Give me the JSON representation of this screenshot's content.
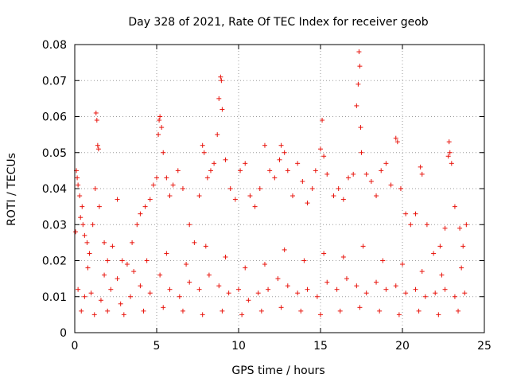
{
  "chart_data": {
    "type": "scatter",
    "title": "Day 328 of 2021, Rate Of TEC Index for receiver geob",
    "xlabel": "GPS time / hours",
    "ylabel": "ROTI / TECUs",
    "xlim": [
      0,
      25
    ],
    "ylim": [
      0,
      0.08
    ],
    "xticks": [
      "0",
      "5",
      "10",
      "15",
      "20",
      "25"
    ],
    "yticks": [
      "0",
      "0.01",
      "0.02",
      "0.03",
      "0.04",
      "0.05",
      "0.06",
      "0.07",
      "0.08"
    ],
    "grid": true,
    "marker": "plus",
    "color": "#e8140c",
    "series": [
      {
        "points": [
          [
            0.05,
            0.028
          ],
          [
            0.1,
            0.045
          ],
          [
            0.15,
            0.043
          ],
          [
            0.2,
            0.041
          ],
          [
            0.3,
            0.038
          ],
          [
            0.35,
            0.032
          ],
          [
            0.45,
            0.035
          ],
          [
            0.5,
            0.03
          ],
          [
            0.6,
            0.027
          ],
          [
            0.75,
            0.025
          ],
          [
            0.9,
            0.022
          ],
          [
            1.1,
            0.03
          ],
          [
            1.25,
            0.04
          ],
          [
            1.3,
            0.061
          ],
          [
            1.35,
            0.059
          ],
          [
            1.4,
            0.052
          ],
          [
            1.45,
            0.051
          ],
          [
            1.5,
            0.035
          ],
          [
            1.8,
            0.025
          ],
          [
            2.0,
            0.02
          ],
          [
            2.3,
            0.024
          ],
          [
            2.6,
            0.037
          ],
          [
            2.9,
            0.02
          ],
          [
            3.2,
            0.019
          ],
          [
            3.5,
            0.025
          ],
          [
            3.8,
            0.03
          ],
          [
            4.0,
            0.033
          ],
          [
            4.3,
            0.035
          ],
          [
            4.6,
            0.037
          ],
          [
            4.8,
            0.041
          ],
          [
            5.0,
            0.043
          ],
          [
            5.1,
            0.055
          ],
          [
            5.15,
            0.059
          ],
          [
            5.2,
            0.06
          ],
          [
            5.3,
            0.057
          ],
          [
            5.4,
            0.05
          ],
          [
            5.6,
            0.043
          ],
          [
            5.8,
            0.038
          ],
          [
            6.0,
            0.041
          ],
          [
            6.3,
            0.045
          ],
          [
            6.6,
            0.04
          ],
          [
            7.0,
            0.03
          ],
          [
            7.3,
            0.025
          ],
          [
            7.6,
            0.038
          ],
          [
            7.8,
            0.052
          ],
          [
            7.9,
            0.05
          ],
          [
            8.1,
            0.043
          ],
          [
            8.3,
            0.045
          ],
          [
            8.5,
            0.047
          ],
          [
            8.7,
            0.055
          ],
          [
            8.8,
            0.065
          ],
          [
            8.9,
            0.071
          ],
          [
            8.95,
            0.07
          ],
          [
            9.0,
            0.062
          ],
          [
            9.2,
            0.048
          ],
          [
            9.5,
            0.04
          ],
          [
            9.8,
            0.037
          ],
          [
            10.1,
            0.045
          ],
          [
            10.4,
            0.047
          ],
          [
            10.7,
            0.038
          ],
          [
            11.0,
            0.035
          ],
          [
            11.3,
            0.04
          ],
          [
            11.6,
            0.052
          ],
          [
            11.9,
            0.045
          ],
          [
            12.2,
            0.043
          ],
          [
            12.5,
            0.048
          ],
          [
            12.6,
            0.052
          ],
          [
            12.8,
            0.05
          ],
          [
            13.0,
            0.045
          ],
          [
            13.3,
            0.038
          ],
          [
            13.6,
            0.047
          ],
          [
            13.9,
            0.042
          ],
          [
            14.2,
            0.036
          ],
          [
            14.5,
            0.04
          ],
          [
            14.7,
            0.045
          ],
          [
            15.0,
            0.051
          ],
          [
            15.1,
            0.059
          ],
          [
            15.2,
            0.049
          ],
          [
            15.4,
            0.044
          ],
          [
            15.8,
            0.038
          ],
          [
            16.1,
            0.04
          ],
          [
            16.4,
            0.037
          ],
          [
            16.7,
            0.043
          ],
          [
            17.0,
            0.044
          ],
          [
            17.2,
            0.063
          ],
          [
            17.3,
            0.069
          ],
          [
            17.35,
            0.078
          ],
          [
            17.4,
            0.074
          ],
          [
            17.45,
            0.057
          ],
          [
            17.5,
            0.05
          ],
          [
            17.8,
            0.044
          ],
          [
            18.1,
            0.042
          ],
          [
            18.4,
            0.038
          ],
          [
            18.7,
            0.045
          ],
          [
            19.0,
            0.047
          ],
          [
            19.3,
            0.041
          ],
          [
            19.6,
            0.054
          ],
          [
            19.7,
            0.053
          ],
          [
            19.9,
            0.04
          ],
          [
            20.2,
            0.033
          ],
          [
            20.5,
            0.03
          ],
          [
            20.8,
            0.033
          ],
          [
            21.1,
            0.046
          ],
          [
            21.2,
            0.044
          ],
          [
            21.5,
            0.03
          ],
          [
            21.9,
            0.022
          ],
          [
            22.3,
            0.024
          ],
          [
            22.6,
            0.029
          ],
          [
            22.8,
            0.049
          ],
          [
            22.85,
            0.053
          ],
          [
            22.9,
            0.05
          ],
          [
            23.0,
            0.047
          ],
          [
            23.2,
            0.035
          ],
          [
            23.5,
            0.029
          ],
          [
            23.7,
            0.024
          ],
          [
            23.9,
            0.03
          ],
          [
            0.2,
            0.012
          ],
          [
            0.6,
            0.01
          ],
          [
            1.0,
            0.011
          ],
          [
            1.6,
            0.009
          ],
          [
            2.2,
            0.012
          ],
          [
            2.8,
            0.008
          ],
          [
            3.4,
            0.01
          ],
          [
            4.0,
            0.013
          ],
          [
            4.6,
            0.011
          ],
          [
            5.2,
            0.016
          ],
          [
            5.8,
            0.012
          ],
          [
            6.4,
            0.01
          ],
          [
            7.0,
            0.014
          ],
          [
            7.6,
            0.012
          ],
          [
            8.2,
            0.016
          ],
          [
            8.8,
            0.013
          ],
          [
            9.4,
            0.011
          ],
          [
            10.0,
            0.012
          ],
          [
            10.6,
            0.009
          ],
          [
            11.2,
            0.011
          ],
          [
            11.8,
            0.012
          ],
          [
            12.4,
            0.015
          ],
          [
            13.0,
            0.013
          ],
          [
            13.6,
            0.011
          ],
          [
            14.2,
            0.012
          ],
          [
            14.8,
            0.01
          ],
          [
            15.4,
            0.014
          ],
          [
            16.0,
            0.012
          ],
          [
            16.6,
            0.015
          ],
          [
            17.2,
            0.013
          ],
          [
            17.8,
            0.011
          ],
          [
            18.4,
            0.014
          ],
          [
            19.0,
            0.012
          ],
          [
            19.6,
            0.013
          ],
          [
            20.2,
            0.011
          ],
          [
            20.8,
            0.012
          ],
          [
            21.4,
            0.01
          ],
          [
            22.0,
            0.011
          ],
          [
            22.6,
            0.012
          ],
          [
            23.2,
            0.01
          ],
          [
            23.8,
            0.011
          ],
          [
            0.4,
            0.006
          ],
          [
            1.2,
            0.005
          ],
          [
            2.0,
            0.006
          ],
          [
            3.0,
            0.005
          ],
          [
            4.2,
            0.006
          ],
          [
            5.4,
            0.007
          ],
          [
            6.6,
            0.006
          ],
          [
            7.8,
            0.005
          ],
          [
            9.0,
            0.006
          ],
          [
            10.2,
            0.005
          ],
          [
            11.4,
            0.006
          ],
          [
            12.6,
            0.007
          ],
          [
            13.8,
            0.006
          ],
          [
            15.0,
            0.005
          ],
          [
            16.2,
            0.006
          ],
          [
            17.4,
            0.007
          ],
          [
            18.6,
            0.006
          ],
          [
            19.8,
            0.005
          ],
          [
            21.0,
            0.006
          ],
          [
            22.2,
            0.005
          ],
          [
            23.4,
            0.006
          ],
          [
            0.8,
            0.018
          ],
          [
            1.8,
            0.016
          ],
          [
            2.6,
            0.015
          ],
          [
            3.6,
            0.017
          ],
          [
            4.4,
            0.02
          ],
          [
            5.6,
            0.022
          ],
          [
            6.8,
            0.019
          ],
          [
            8.0,
            0.024
          ],
          [
            9.2,
            0.021
          ],
          [
            10.4,
            0.018
          ],
          [
            11.6,
            0.019
          ],
          [
            12.8,
            0.023
          ],
          [
            14.0,
            0.02
          ],
          [
            15.2,
            0.022
          ],
          [
            16.4,
            0.021
          ],
          [
            17.6,
            0.024
          ],
          [
            18.8,
            0.02
          ],
          [
            20.0,
            0.019
          ],
          [
            21.2,
            0.017
          ],
          [
            22.4,
            0.016
          ],
          [
            23.6,
            0.018
          ]
        ]
      }
    ]
  }
}
